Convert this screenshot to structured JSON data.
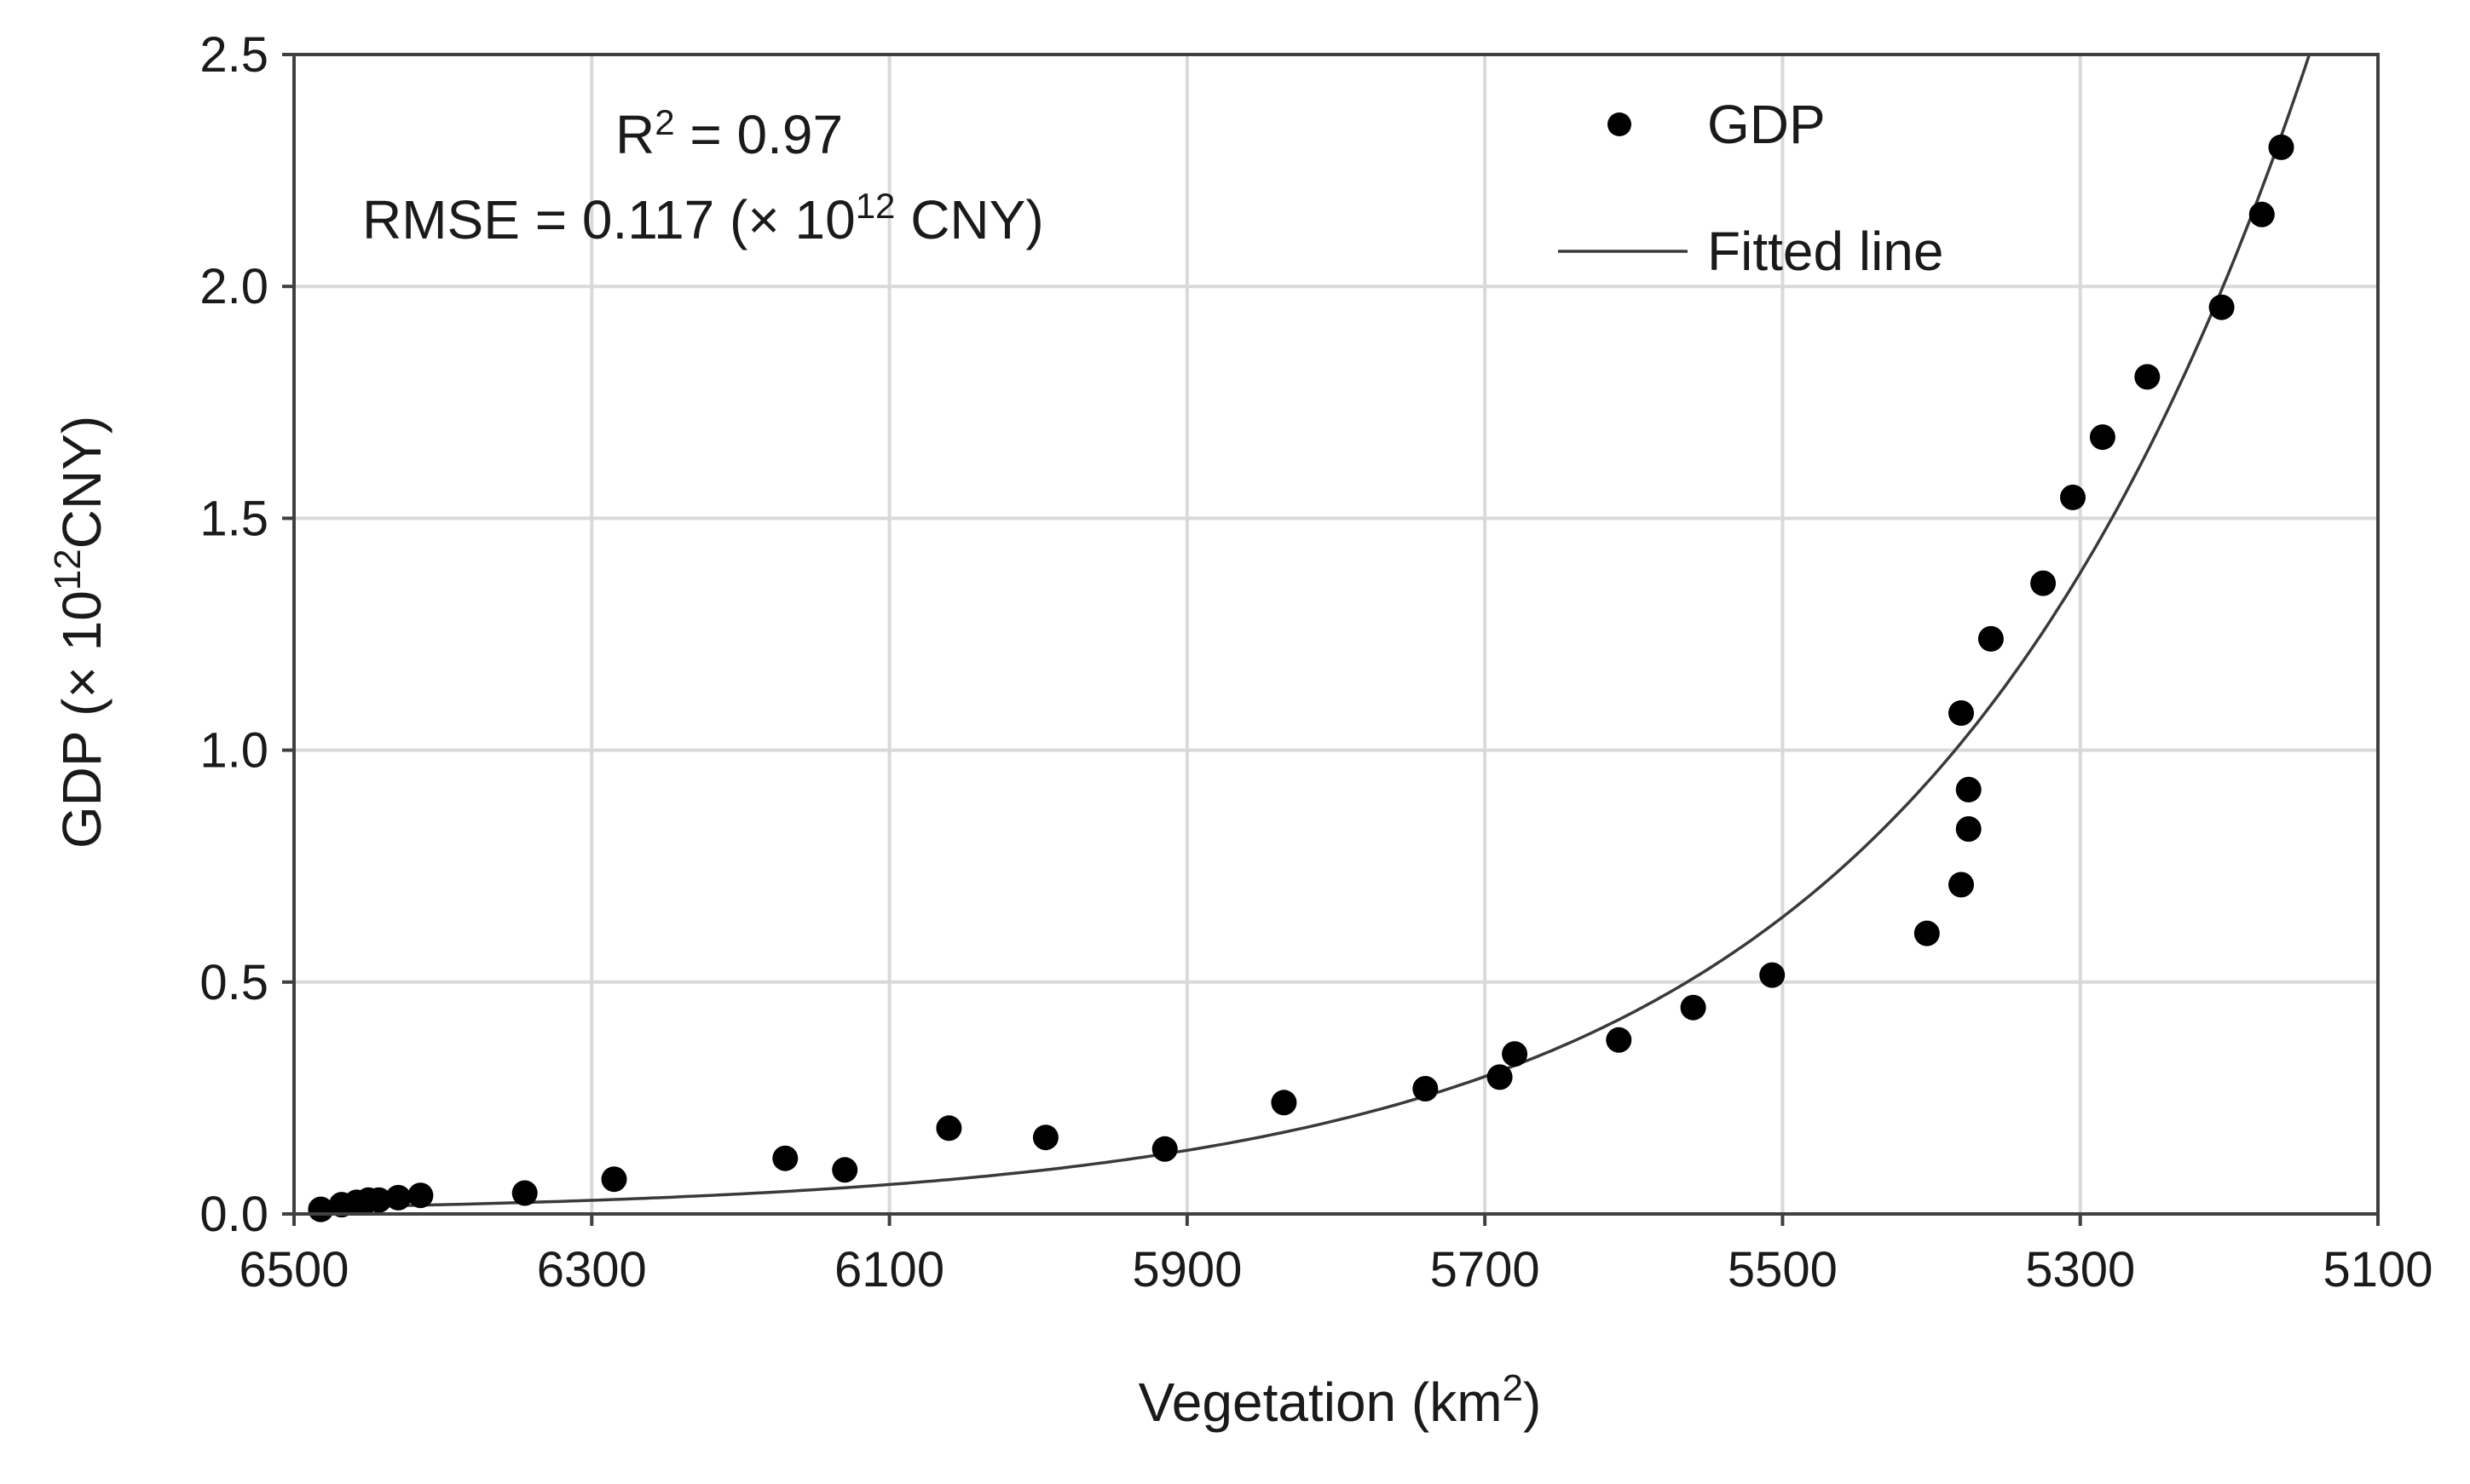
{
  "chart_data": {
    "type": "scatter",
    "title": "",
    "xlabel_main": "Vegetation (km",
    "xlabel_sup": "2",
    "xlabel_end": ")",
    "ylabel_main": "GDP (× 10",
    "ylabel_sup": "12",
    "ylabel_end": "CNY)",
    "x_reversed": true,
    "xlim": [
      6500,
      5100
    ],
    "ylim": [
      0.0,
      2.5
    ],
    "x_ticks": [
      6500,
      6300,
      6100,
      5900,
      5700,
      5500,
      5300,
      5100
    ],
    "x_tick_labels": [
      "6500",
      "6300",
      "6100",
      "5900",
      "5700",
      "5500",
      "5300",
      "5100"
    ],
    "y_ticks": [
      0.0,
      0.5,
      1.0,
      1.5,
      2.0,
      2.5
    ],
    "y_tick_labels": [
      "0.0",
      "0.5",
      "1.0",
      "1.5",
      "2.0",
      "2.5"
    ],
    "grid": true,
    "legend_position": "top-right",
    "legend": {
      "points_label": "GDP",
      "line_label": "Fitted line"
    },
    "annotations": {
      "r2_main": "R",
      "r2_sup": "2",
      "r2_rest": " = 0.97",
      "rmse_main": "RMSE = 0.117 (× 10",
      "rmse_sup": "12",
      "rmse_end": " CNY)"
    },
    "series": [
      {
        "name": "GDP",
        "kind": "scatter",
        "x": [
          6482,
          6468,
          6458,
          6450,
          6443,
          6430,
          6415,
          6345,
          6285,
          6170,
          6130,
          6060,
          5995,
          5915,
          5835,
          5740,
          5690,
          5680,
          5610,
          5560,
          5507,
          5403,
          5380,
          5380,
          5375,
          5375,
          5360,
          5325,
          5305,
          5285,
          5255,
          5205,
          5178,
          5165
        ],
        "y": [
          0.01,
          0.02,
          0.025,
          0.03,
          0.03,
          0.035,
          0.04,
          0.045,
          0.075,
          0.12,
          0.095,
          0.185,
          0.165,
          0.14,
          0.24,
          0.27,
          0.295,
          0.345,
          0.375,
          0.445,
          0.515,
          0.605,
          0.71,
          1.08,
          0.83,
          0.915,
          1.24,
          1.36,
          1.545,
          1.675,
          1.805,
          1.955,
          2.155,
          2.3
        ]
      },
      {
        "name": "Fitted line",
        "kind": "line",
        "model": "exponential",
        "a": 0.64,
        "b": 0.00385,
        "x0": 5500,
        "x_range": [
          6490,
          5100
        ]
      }
    ]
  }
}
